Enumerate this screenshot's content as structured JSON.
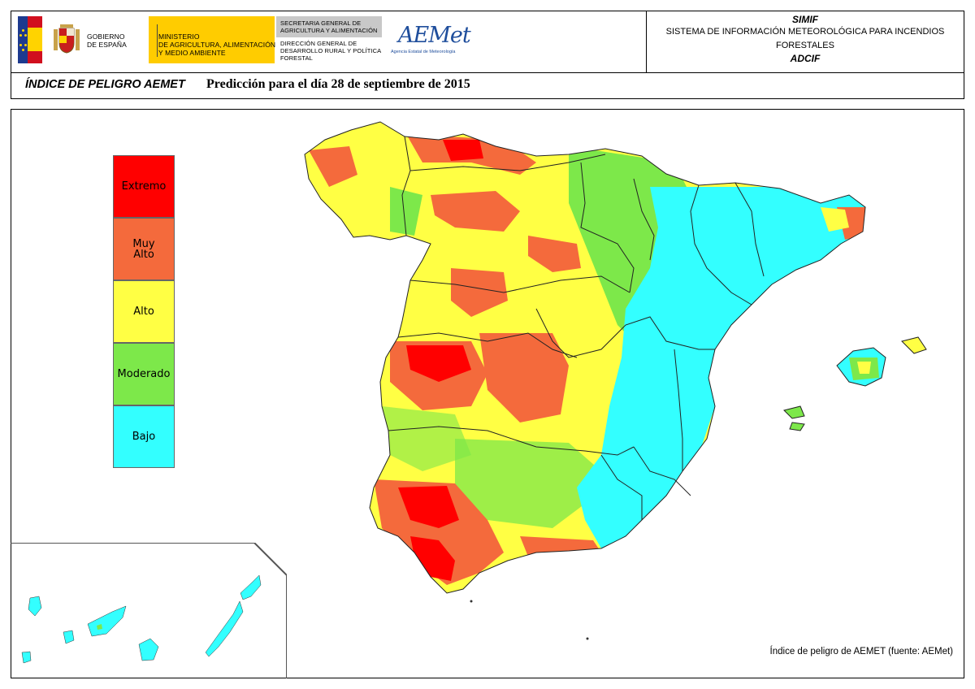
{
  "header": {
    "gov_line1": "GOBIERNO",
    "gov_line2": "DE ESPAÑA",
    "ministry_line1": "MINISTERIO",
    "ministry_line2": "DE AGRICULTURA, ALIMENTACIÓN",
    "ministry_line3": "Y MEDIO AMBIENTE",
    "secretaria_line1": "SECRETARIA GENERAL DE",
    "secretaria_line2": "AGRICULTURA Y ALIMENTACIÓN",
    "direccion_line1": "DIRECCIÓN GENERAL DE",
    "direccion_line2": "DESARROLLO RURAL Y POLÍTICA",
    "direccion_line3": "FORESTAL",
    "aemet_logo_text": "AEMet",
    "aemet_logo_sub": "Agencia Estatal de Meteorología",
    "system_abbr": "SIMIF",
    "system_name": "SISTEMA DE INFORMACIÓN METEOROLÓGICA PARA INCENDIOS FORESTALES",
    "system_sub": "ADCIF"
  },
  "title": {
    "index_name": "ÍNDICE DE PELIGRO AEMET",
    "prediction": "Predicción para el día 28 de septiembre de 2015"
  },
  "legend": [
    {
      "label": "Extremo",
      "color": "#ff0000"
    },
    {
      "label": "Muy\nAlto",
      "color": "#f46a3c"
    },
    {
      "label": "Alto",
      "color": "#ffff44"
    },
    {
      "label": "Moderado",
      "color": "#7de84a"
    },
    {
      "label": "Bajo",
      "color": "#33ffff"
    }
  ],
  "source": "Índice de peligro de AEMET (fuente: AEMet)"
}
